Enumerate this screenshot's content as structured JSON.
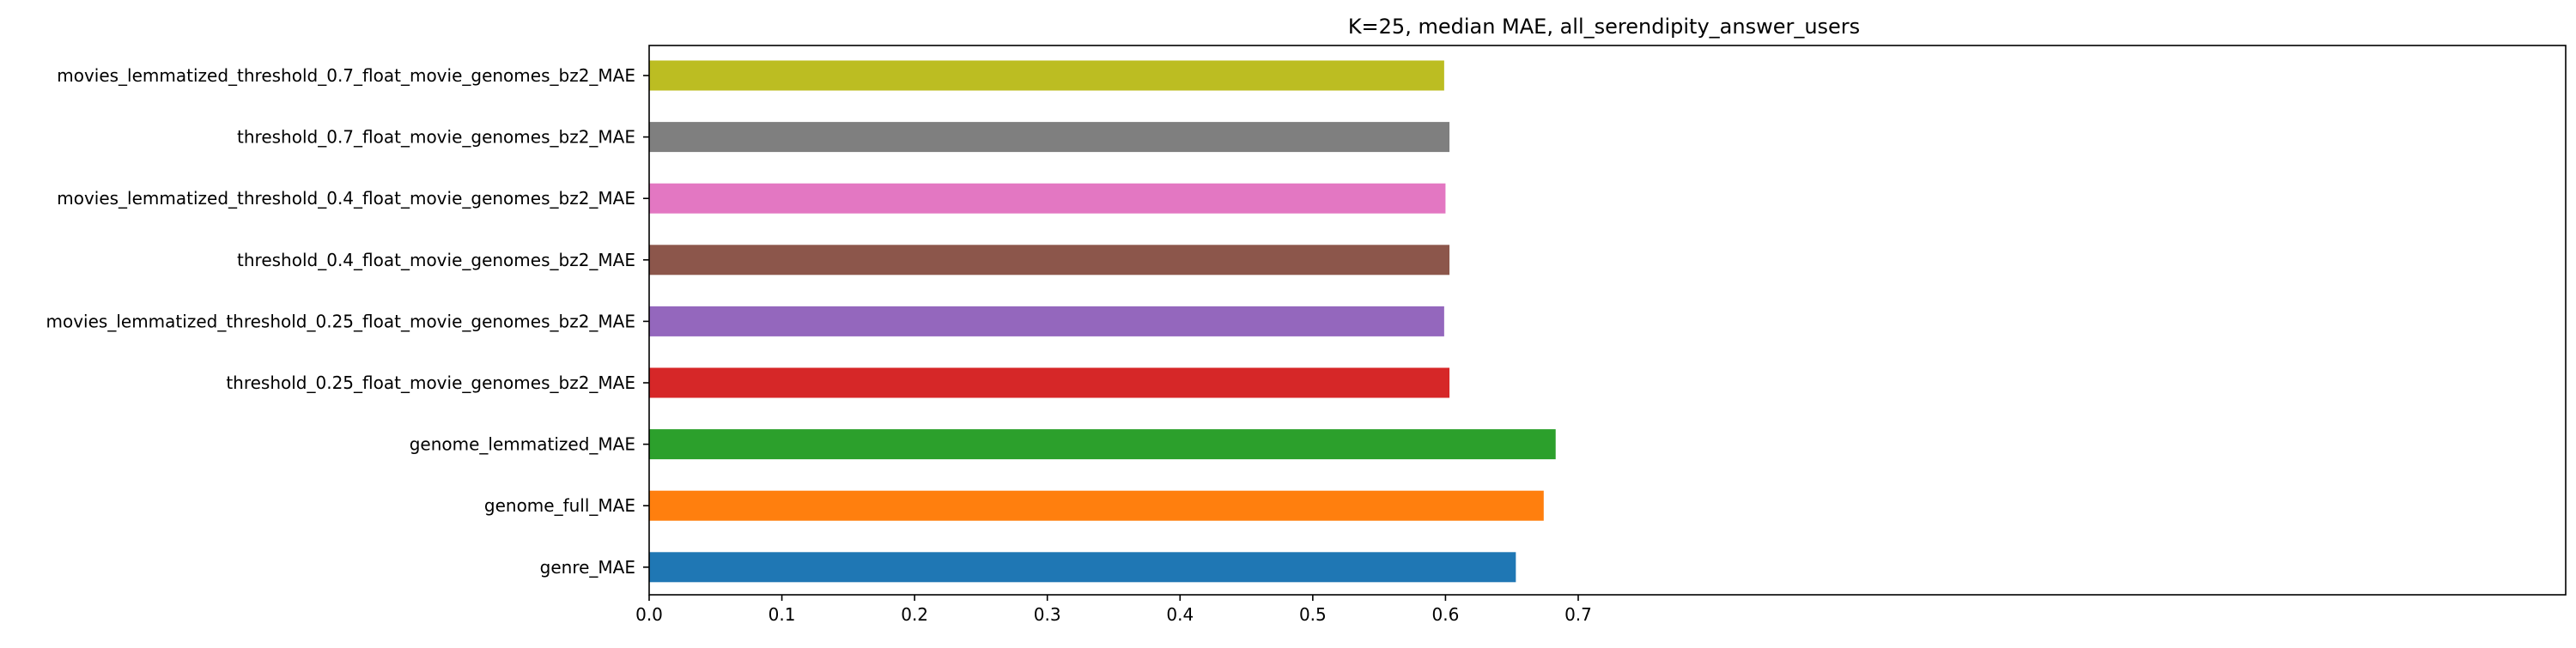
{
  "chart_data": {
    "type": "bar",
    "orientation": "horizontal",
    "title": "K=25, median MAE, all_serendipity_answer_users",
    "xlabel": "",
    "ylabel": "",
    "xlim": [
      0,
      0.72
    ],
    "xticks": [
      0.0,
      0.1,
      0.2,
      0.3,
      0.4,
      0.5,
      0.6,
      0.7
    ],
    "xtick_labels": [
      "0.0",
      "0.1",
      "0.2",
      "0.3",
      "0.4",
      "0.5",
      "0.6",
      "0.7"
    ],
    "grid": false,
    "legend": "none",
    "categories": [
      "movies_lemmatized_threshold_0.7_float_movie_genomes_bz2_MAE",
      "threshold_0.7_float_movie_genomes_bz2_MAE",
      "movies_lemmatized_threshold_0.4_float_movie_genomes_bz2_MAE",
      "threshold_0.4_float_movie_genomes_bz2_MAE",
      "movies_lemmatized_threshold_0.25_float_movie_genomes_bz2_MAE",
      "threshold_0.25_float_movie_genomes_bz2_MAE",
      "genome_lemmatized_MAE",
      "genome_full_MAE",
      "genre_MAE"
    ],
    "values": [
      0.599,
      0.603,
      0.6,
      0.603,
      0.599,
      0.603,
      0.683,
      0.674,
      0.653
    ],
    "colors": [
      "#bcbd22",
      "#7f7f7f",
      "#e377c2",
      "#8c564b",
      "#9467bd",
      "#d62728",
      "#2ca02c",
      "#ff7f0e",
      "#1f77b4"
    ]
  }
}
